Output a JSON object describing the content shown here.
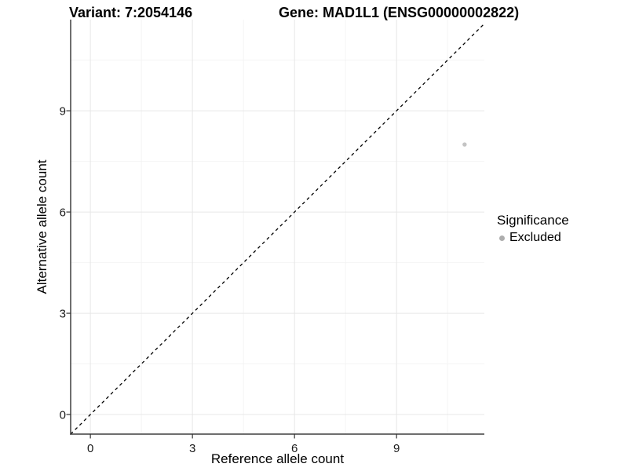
{
  "chart_data": {
    "type": "scatter",
    "title_left": "Variant: 7:2054146",
    "title_right": "Gene: MAD1L1 (ENSG00000002822)",
    "xlabel": "Reference allele count",
    "ylabel": "Alternative allele count",
    "xlim": [
      -0.58,
      11.58
    ],
    "ylim": [
      -0.58,
      11.7
    ],
    "x_major_ticks": [
      0,
      3,
      6,
      9
    ],
    "y_major_ticks": [
      0,
      3,
      6,
      9
    ],
    "x_minor_ticks": [
      1.5,
      4.5,
      7.5,
      10.5
    ],
    "y_minor_ticks": [
      1.5,
      4.5,
      7.5,
      10.5
    ],
    "grid": true,
    "reference_line": {
      "type": "identity",
      "slope": 1,
      "intercept": 0,
      "style": "dashed"
    },
    "series": [
      {
        "name": "Excluded",
        "color": "#c4c4c4",
        "points": [
          {
            "x": 11,
            "y": 8
          }
        ]
      }
    ],
    "legend": {
      "title": "Significance",
      "position": "right",
      "entries": [
        {
          "label": "Excluded",
          "color": "#adadad"
        }
      ]
    },
    "colors": {
      "background": "#ffffff",
      "grid_major": "#e7e7e7",
      "grid_minor": "#f4f4f4",
      "axis_line": "#3f3f3f",
      "tick_mark": "#333333",
      "tick_label": "#1a1a1a",
      "reference_line": "#000000",
      "point": "#c4c4c4"
    }
  }
}
